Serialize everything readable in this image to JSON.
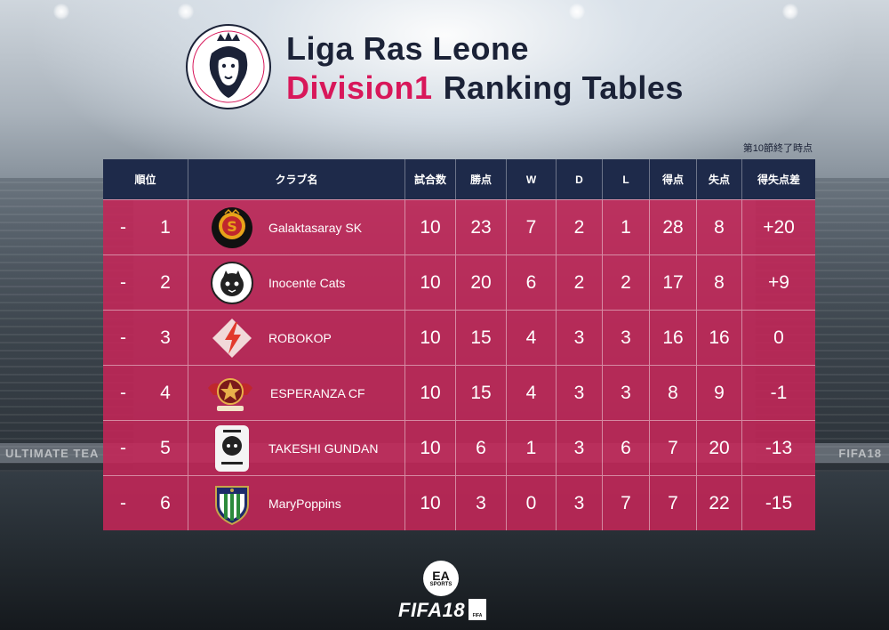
{
  "header": {
    "logo_text": "Liga Ras Leone",
    "title_line1": "Liga Ras Leone",
    "title_accent": "Division1",
    "title_rest": "Ranking Tables",
    "as_of": "第10節終了時点"
  },
  "colors": {
    "accent": "#d8175a",
    "header_bg": "#1e2a4a",
    "row_bg": "#c42658",
    "title_dark": "#1b2237"
  },
  "table": {
    "columns": {
      "rank": "順位",
      "club": "クラブ名",
      "games": "試合数",
      "points": "勝点",
      "w": "W",
      "d": "D",
      "l": "L",
      "gf": "得点",
      "ga": "失点",
      "gd": "得失点差"
    },
    "rows": [
      {
        "move": "-",
        "rank": "1",
        "club": "Galaktasaray SK",
        "games": "10",
        "points": "23",
        "w": "7",
        "d": "2",
        "l": "1",
        "gf": "28",
        "ga": "8",
        "gd": "+20",
        "icon": "galaktasaray-crest-icon"
      },
      {
        "move": "-",
        "rank": "2",
        "club": "Inocente Cats",
        "games": "10",
        "points": "20",
        "w": "6",
        "d": "2",
        "l": "2",
        "gf": "17",
        "ga": "8",
        "gd": "+9",
        "icon": "inocente-cats-crest-icon"
      },
      {
        "move": "-",
        "rank": "3",
        "club": "ROBOKOP",
        "games": "10",
        "points": "15",
        "w": "4",
        "d": "3",
        "l": "3",
        "gf": "16",
        "ga": "16",
        "gd": "0",
        "icon": "robokop-crest-icon"
      },
      {
        "move": "-",
        "rank": "4",
        "club": "ESPERANZA CF",
        "games": "10",
        "points": "15",
        "w": "4",
        "d": "3",
        "l": "3",
        "gf": "8",
        "ga": "9",
        "gd": "-1",
        "icon": "esperanza-crest-icon"
      },
      {
        "move": "-",
        "rank": "5",
        "club": "TAKESHI GUNDAN",
        "games": "10",
        "points": "6",
        "w": "1",
        "d": "3",
        "l": "6",
        "gf": "7",
        "ga": "20",
        "gd": "-13",
        "icon": "takeshi-gundan-crest-icon"
      },
      {
        "move": "-",
        "rank": "6",
        "club": "MaryPoppins",
        "games": "10",
        "points": "3",
        "w": "0",
        "d": "3",
        "l": "7",
        "gf": "7",
        "ga": "22",
        "gd": "-15",
        "icon": "marypoppins-crest-icon"
      }
    ]
  },
  "background": {
    "banner_left": "ULTIMATE TEA",
    "banner_right": "FIFA18"
  },
  "footer": {
    "ea_label": "EA",
    "sports_label": "SPORTS",
    "fifa_label": "FIFA",
    "fifa_year": "18",
    "rating_label": "FIFA"
  }
}
